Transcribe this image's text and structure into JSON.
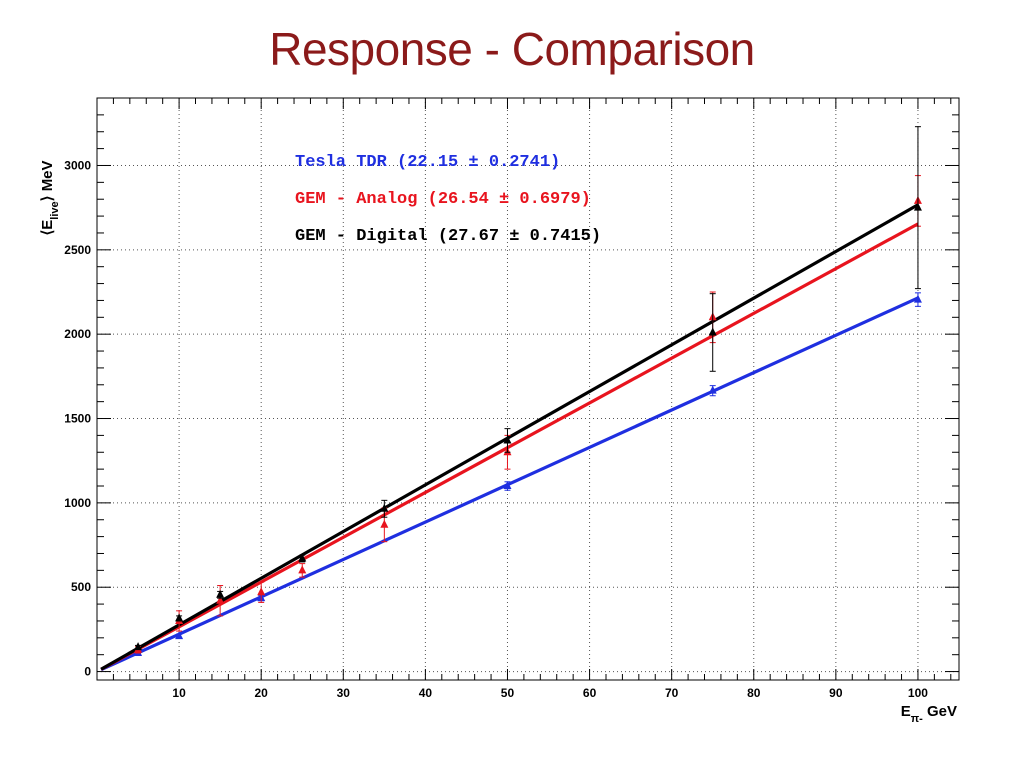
{
  "page": {
    "title": "Response - Comparison"
  },
  "chart_data": {
    "type": "scatter",
    "title": "Response - Comparison",
    "xlabel": "Eπ- GeV",
    "ylabel": "⟨Elive⟩ MeV",
    "xlim": [
      0,
      105
    ],
    "ylim": [
      -50,
      3400
    ],
    "x_ticks": [
      10,
      20,
      30,
      40,
      50,
      60,
      70,
      80,
      90,
      100
    ],
    "y_ticks": [
      0,
      500,
      1000,
      1500,
      2000,
      2500,
      3000
    ],
    "grid": true,
    "legend_position": "top-left",
    "series": [
      {
        "name": "Tesla TDR (22.15 ± 0.2741)",
        "color": "#1f2fe0",
        "fit_slope": 22.15,
        "points": [
          {
            "x": 5,
            "y": 110,
            "err": 10
          },
          {
            "x": 10,
            "y": 210,
            "err": 12
          },
          {
            "x": 20,
            "y": 435,
            "err": 15
          },
          {
            "x": 50,
            "y": 1100,
            "err": 25
          },
          {
            "x": 75,
            "y": 1665,
            "err": 30
          },
          {
            "x": 100,
            "y": 2205,
            "err": 40
          }
        ]
      },
      {
        "name": "GEM - Analog (26.54 ± 0.6979)",
        "color": "#e8141e",
        "fit_slope": 26.54,
        "points": [
          {
            "x": 5,
            "y": 130,
            "err": 20
          },
          {
            "x": 10,
            "y": 300,
            "err": 60
          },
          {
            "x": 15,
            "y": 420,
            "err": 90
          },
          {
            "x": 20,
            "y": 470,
            "err": 60
          },
          {
            "x": 25,
            "y": 600,
            "err": 40
          },
          {
            "x": 35,
            "y": 870,
            "err": 100
          },
          {
            "x": 50,
            "y": 1300,
            "err": 100
          },
          {
            "x": 75,
            "y": 2100,
            "err": 150
          },
          {
            "x": 100,
            "y": 2790,
            "err": 150
          }
        ]
      },
      {
        "name": "GEM - Digital (27.67 ± 0.7415)",
        "color": "#000000",
        "fit_slope": 27.67,
        "points": [
          {
            "x": 5,
            "y": 145,
            "err": 10
          },
          {
            "x": 10,
            "y": 315,
            "err": 15
          },
          {
            "x": 15,
            "y": 455,
            "err": 20
          },
          {
            "x": 25,
            "y": 670,
            "err": 20
          },
          {
            "x": 35,
            "y": 965,
            "err": 50
          },
          {
            "x": 50,
            "y": 1370,
            "err": 70
          },
          {
            "x": 75,
            "y": 2010,
            "err": 230
          },
          {
            "x": 100,
            "y": 2750,
            "err": 480
          }
        ]
      }
    ]
  }
}
